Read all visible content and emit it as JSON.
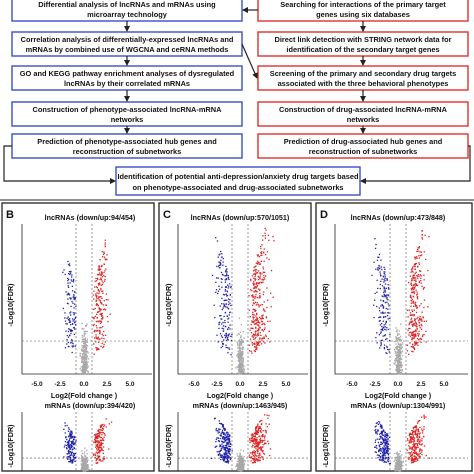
{
  "panel_a": {
    "left_boxes": [
      [
        "Differential analysis of lncRNAs and mRNAs using",
        "microarray  technology"
      ],
      [
        "Correlation analysis of differentially-expressed lncRNAs and",
        "mRNAs by combined use of WGCNA and ceRNA methods"
      ],
      [
        "GO and KEGG pathway enrichment analyses of dysregulated",
        "lncRNAs by their correlated mRNAs"
      ],
      [
        "Construction of phenotype-associated lncRNA-mRNA",
        "networks"
      ],
      [
        "Prediction of phenotype-associated hub genes and",
        "reconstruction of subnetworks"
      ]
    ],
    "right_boxes": [
      [
        "Searching for interactions of the primary target",
        "genes using six databases"
      ],
      [
        "Direct link detection with STRING network data  for",
        "identification of the secondary target genes"
      ],
      [
        "Screening of the primary and secondary drug targets",
        "associated with the three behavioral phenotypes"
      ],
      [
        "Construction of drug-associated lncRNA-mRNA",
        "networks"
      ],
      [
        "Prediction of drug-associated hub genes and",
        "reconstruction of subnetworks"
      ]
    ],
    "final_box": [
      "Identification of potential anti-depression/anxiety drug targets based",
      "on phenotype-associated and drug-associated subnetworks"
    ],
    "colors": {
      "left_border": "#3a4fc4",
      "right_border": "#e03030",
      "final_border": "#3a4fc4",
      "arrow": "#222222"
    }
  },
  "volcano_panels": [
    {
      "letter": "B",
      "lnc_title": "lncRNAs (down/up:94/454)",
      "mrna_title": "mRNAs (down/up:394/420)",
      "ylabel": "-Log10(FDR)",
      "xlabel": "Log2(Fold change )",
      "xticks": [
        "-5.0",
        "-2.5",
        "0.0",
        "2.5",
        "5.0"
      ]
    },
    {
      "letter": "C",
      "lnc_title": "lncRNAs (down/up:570/1051)",
      "mrna_title": "mRNAs (down/up:1463/945)",
      "ylabel": "-Log10(FDR)",
      "xlabel": "Log2(Fold change )",
      "xticks": [
        "-5.0",
        "-2.5",
        "0.0",
        "2.5",
        "5.0"
      ]
    },
    {
      "letter": "D",
      "lnc_title": "lncRNAs (down/up:473/848)",
      "mrna_title": "mRNAs (down/up:1304/991)",
      "ylabel": "-Log10(FDR)",
      "xlabel": "Log2(Fold change )",
      "xticks": [
        "-5.0",
        "-2.5",
        "0.0",
        "2.5",
        "5.0"
      ]
    }
  ],
  "point_colors": {
    "down": "#2222aa",
    "up": "#dd2222",
    "ns": "#a8a8a8"
  }
}
